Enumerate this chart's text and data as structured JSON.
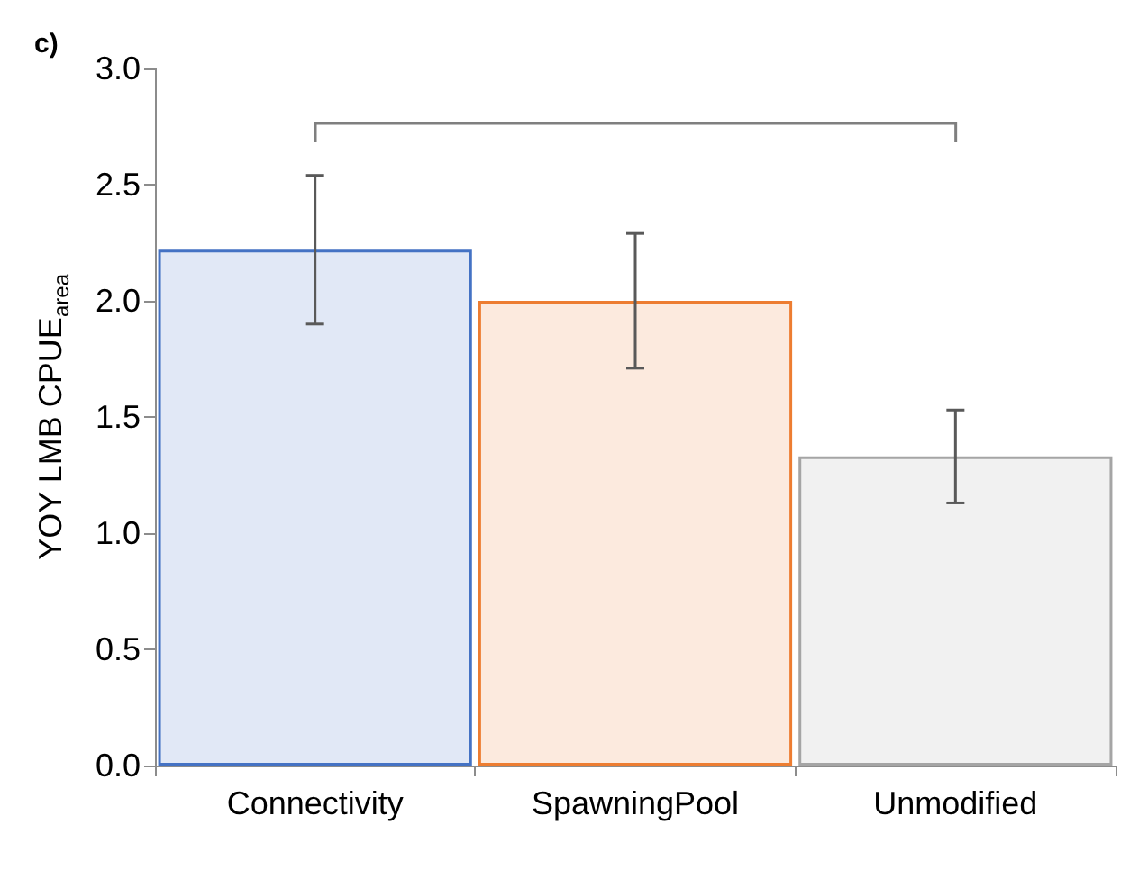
{
  "chart_data": {
    "type": "bar",
    "ylabel": "YOY LMB CPUE$_{area}$",
    "annotations": [
      "c)"
    ],
    "categories": [
      "Connectivity",
      "SpawningPool",
      "Unmodified"
    ],
    "values": [
      2.22,
      2.0,
      1.33
    ],
    "errors": [
      [
        1.9,
        2.54
      ],
      [
        1.71,
        2.29
      ],
      [
        1.13,
        1.53
      ]
    ],
    "colors": [
      "#4472c4",
      "#ed7d31",
      "#a5a5a5"
    ],
    "ylim": [
      0,
      3
    ],
    "yticks": [
      {
        "value": 0,
        "label": "0.0"
      },
      {
        "value": 0.5,
        "label": "0.5"
      },
      {
        "value": 1,
        "label": "1.0"
      },
      {
        "value": 1.5,
        "label": "1.5"
      },
      {
        "value": 2,
        "label": "2.0"
      },
      {
        "value": 2.5,
        "label": "2.5"
      },
      {
        "value": 3,
        "label": "3.0"
      }
    ],
    "grid": false
  }
}
